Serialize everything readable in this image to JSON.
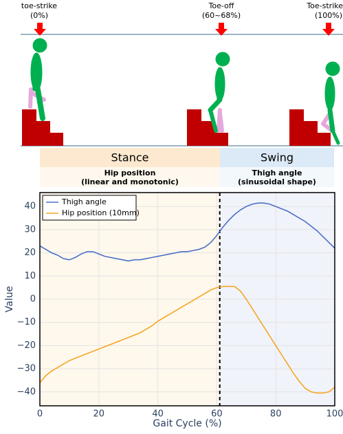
{
  "diagram": {
    "events": [
      {
        "label": "toe-strike",
        "pct": "(0%)"
      },
      {
        "label": "Toe-off",
        "pct": "(60~68%)"
      },
      {
        "label": "Toe-strike",
        "pct": "(100%)"
      }
    ]
  },
  "phases": [
    {
      "name": "Stance",
      "desc": "Hip position",
      "sub": "(linear and monotonic)"
    },
    {
      "name": "Swing",
      "desc": "Thigh angle",
      "sub": "(sinusoidal shape)"
    }
  ],
  "chart_data": {
    "type": "line",
    "xlabel": "Gait Cycle (%)",
    "ylabel": "Value",
    "x": [
      0,
      2,
      4,
      6,
      8,
      10,
      12,
      14,
      16,
      18,
      20,
      22,
      24,
      26,
      28,
      30,
      32,
      34,
      36,
      38,
      40,
      42,
      44,
      46,
      48,
      50,
      52,
      54,
      56,
      58,
      60,
      62,
      64,
      66,
      68,
      70,
      72,
      74,
      76,
      78,
      80,
      82,
      84,
      86,
      88,
      90,
      92,
      94,
      96,
      98,
      100
    ],
    "series": [
      {
        "name": "Thigh angle",
        "color": "#4a6fc9",
        "values": [
          23,
          21.5,
          20,
          19,
          17.5,
          17,
          18,
          19.5,
          20.5,
          20.5,
          19.5,
          18.5,
          18,
          17.5,
          17,
          16.5,
          17,
          17,
          17.5,
          18,
          18.5,
          19,
          19.5,
          20,
          20.5,
          20.5,
          21,
          21.5,
          22.5,
          24.5,
          27.5,
          31,
          34,
          36.5,
          38.5,
          40,
          41,
          41.5,
          41.5,
          41,
          40,
          39,
          38,
          36.5,
          35,
          33.5,
          31.5,
          29.5,
          27,
          24.5,
          22
        ]
      },
      {
        "name": "Hip position (10mm)",
        "color": "#f5a623",
        "values": [
          -36,
          -33,
          -31,
          -29.5,
          -28,
          -26.5,
          -25.5,
          -24.5,
          -23.5,
          -22.5,
          -21.5,
          -20.5,
          -19.5,
          -18.5,
          -17.5,
          -16.5,
          -15.5,
          -14.5,
          -13,
          -11.5,
          -9.5,
          -8,
          -6.5,
          -5,
          -3.5,
          -2,
          -0.5,
          1,
          2.5,
          4,
          5,
          5.5,
          5.5,
          5.5,
          3.5,
          0,
          -4,
          -8,
          -12,
          -16,
          -20,
          -24,
          -28,
          -32,
          -35.5,
          -38.5,
          -40,
          -40.5,
          -40.5,
          -40,
          -38
        ]
      }
    ],
    "xlim": [
      0,
      100
    ],
    "ylim": [
      -46,
      46
    ],
    "xticks": [
      0,
      20,
      40,
      60,
      80,
      100
    ],
    "yticks": [
      {
        "value": -40,
        "label": "−40"
      },
      {
        "value": -30,
        "label": "−30"
      },
      {
        "value": -20,
        "label": "−20"
      },
      {
        "value": -10,
        "label": "−10"
      },
      0,
      10,
      20,
      30,
      40
    ],
    "vline_x": 61,
    "grid": true,
    "legend": "upper left",
    "stance_color": "#fff8ed",
    "swing_color": "#f1f3fb"
  }
}
